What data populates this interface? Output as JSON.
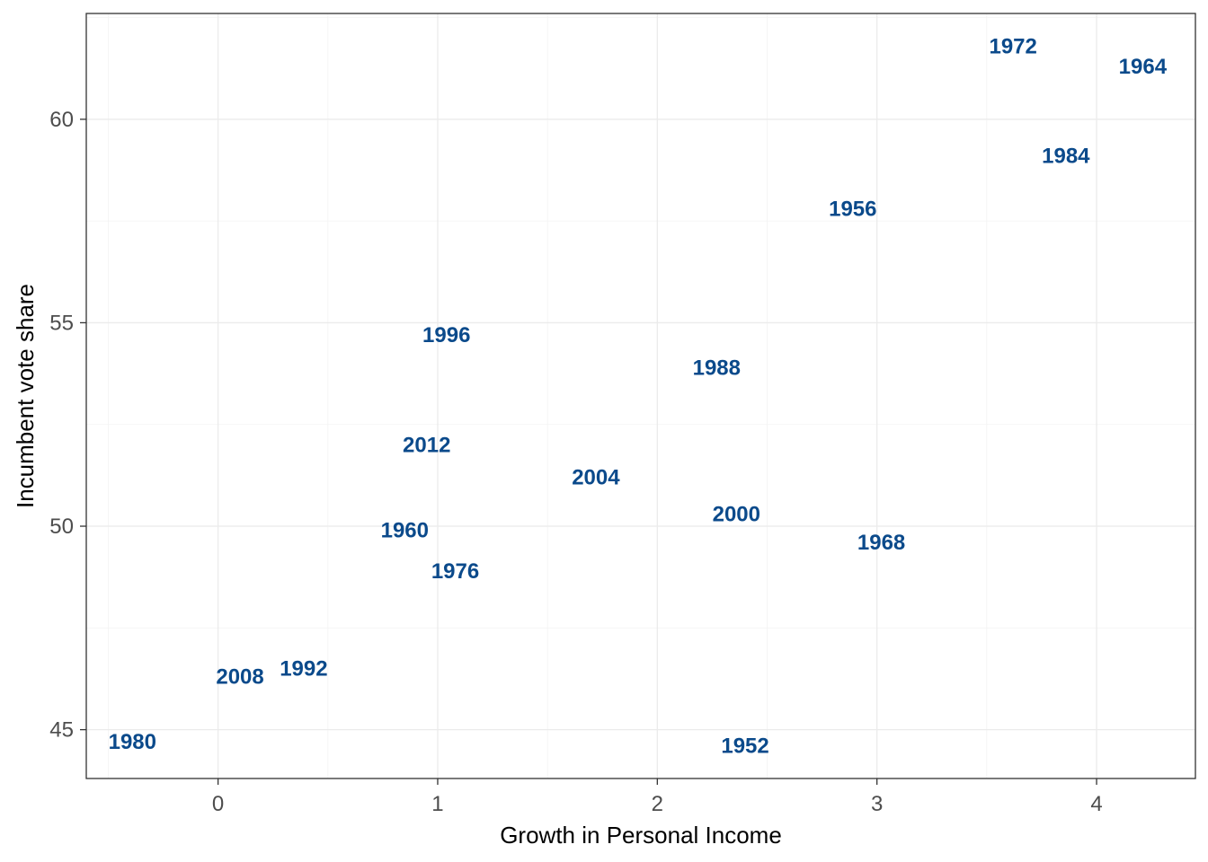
{
  "chart_data": {
    "type": "scatter",
    "title": "",
    "xlabel": "Growth in Personal Income",
    "ylabel": "Incumbent vote share",
    "xlim": [
      -0.6,
      4.45
    ],
    "ylim": [
      43.8,
      62.6
    ],
    "x_ticks": [
      0,
      1,
      2,
      3,
      4
    ],
    "y_ticks": [
      45,
      50,
      55,
      60
    ],
    "grid": true,
    "label_color": "#0b4a8b",
    "points": [
      {
        "label": "1952",
        "x": 2.4,
        "y": 44.6
      },
      {
        "label": "1956",
        "x": 2.89,
        "y": 57.8
      },
      {
        "label": "1960",
        "x": 0.85,
        "y": 49.9
      },
      {
        "label": "1964",
        "x": 4.21,
        "y": 61.3
      },
      {
        "label": "1968",
        "x": 3.02,
        "y": 49.6
      },
      {
        "label": "1972",
        "x": 3.62,
        "y": 61.8
      },
      {
        "label": "1976",
        "x": 1.08,
        "y": 48.9
      },
      {
        "label": "1980",
        "x": -0.39,
        "y": 44.7
      },
      {
        "label": "1984",
        "x": 3.86,
        "y": 59.1
      },
      {
        "label": "1988",
        "x": 2.27,
        "y": 53.9
      },
      {
        "label": "1992",
        "x": 0.39,
        "y": 46.5
      },
      {
        "label": "1996",
        "x": 1.04,
        "y": 54.7
      },
      {
        "label": "2000",
        "x": 2.36,
        "y": 50.3
      },
      {
        "label": "2004",
        "x": 1.72,
        "y": 51.2
      },
      {
        "label": "2008",
        "x": 0.1,
        "y": 46.3
      },
      {
        "label": "2012",
        "x": 0.95,
        "y": 52.0
      }
    ]
  }
}
